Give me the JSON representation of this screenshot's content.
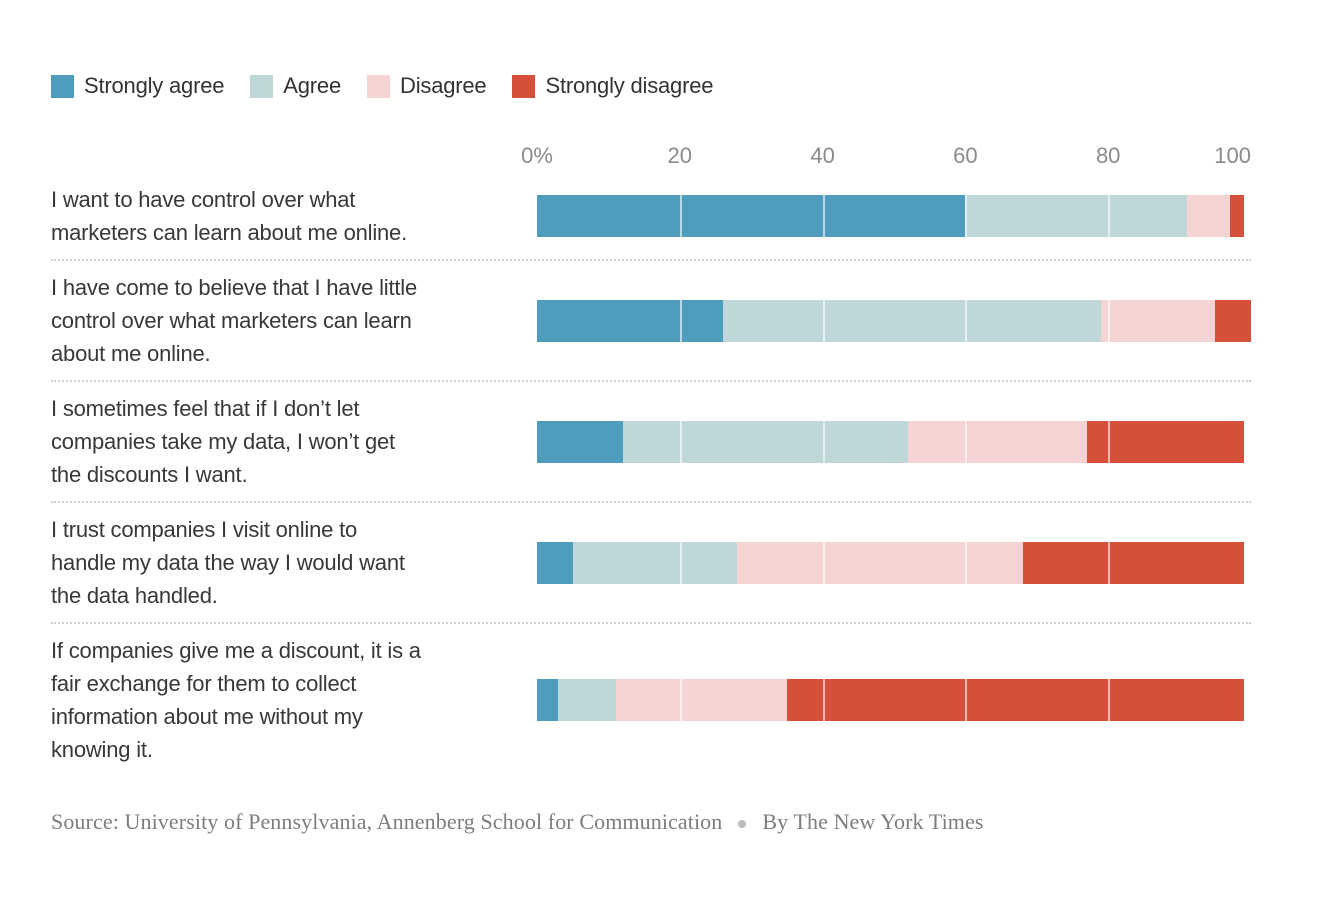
{
  "colors": {
    "strongly_agree": "#4e9dbd",
    "agree": "#c0d7da",
    "disagree": "#f6d4d3",
    "strongly_disagree": "#d5503a",
    "axis_label": "#8b8b8b",
    "statement_text": "#383838",
    "source_text": "#7d7d7d",
    "row_separator": "#cfcfcf"
  },
  "legend": {
    "items": [
      {
        "label": "Strongly agree",
        "color_key": "strongly_agree"
      },
      {
        "label": "Agree",
        "color_key": "agree"
      },
      {
        "label": "Disagree",
        "color_key": "disagree"
      },
      {
        "label": "Strongly disagree",
        "color_key": "strongly_disagree"
      }
    ]
  },
  "axis": {
    "ticks": [
      {
        "label": "0%",
        "pos": 0
      },
      {
        "label": "20",
        "pos": 20
      },
      {
        "label": "40",
        "pos": 40
      },
      {
        "label": "60",
        "pos": 60
      },
      {
        "label": "80",
        "pos": 80
      },
      {
        "label": "100",
        "pos": 100
      }
    ],
    "gridline_positions": [
      20,
      40,
      60,
      80
    ]
  },
  "rows": [
    {
      "label_lines": [
        "I want to have control over what",
        "marketers can learn about me online."
      ],
      "values": [
        60,
        31,
        6,
        2
      ]
    },
    {
      "label_lines": [
        "I have come to believe that I have little",
        "control over what marketers can learn",
        "about me online."
      ],
      "values": [
        26,
        53,
        16,
        5
      ]
    },
    {
      "label_lines": [
        "I sometimes feel that if I don’t let",
        "companies take my data, I won’t get",
        "the discounts I want."
      ],
      "values": [
        12,
        40,
        25,
        22
      ]
    },
    {
      "label_lines": [
        "I trust companies I visit online to",
        "handle my data the way I would want",
        "the data handled."
      ],
      "values": [
        5,
        23,
        40,
        31
      ]
    },
    {
      "label_lines": [
        "If companies give me a discount, it is a",
        "fair exchange for them to collect",
        "information about me without my",
        "knowing it."
      ],
      "values": [
        3,
        8,
        24,
        64
      ]
    }
  ],
  "source": {
    "text": "Source: University of Pennsylvania, Annenberg School for Communication",
    "byline": "By The New York Times"
  },
  "chart_data": {
    "type": "bar",
    "subtype": "horizontal-stacked",
    "title": "",
    "xlabel": "",
    "ylabel": "",
    "xlim": [
      0,
      100
    ],
    "x_tick_labels": [
      "0%",
      "20",
      "40",
      "60",
      "80",
      "100"
    ],
    "grid": "white vertical gridlines at 20/40/60/80 over bars",
    "legend_position": "top-left",
    "categories": [
      "I want to have control over what marketers can learn about me online.",
      "I have come to believe that I have little control over what marketers can learn about me online.",
      "I sometimes feel that if I don’t let companies take my data, I won’t get the discounts I want.",
      "I trust companies I visit online to handle my data the way I would want the data handled.",
      "If companies give me a discount, it is a fair exchange for them to collect information about me without my knowing it."
    ],
    "series": [
      {
        "name": "Strongly agree",
        "color": "#4e9dbd",
        "values": [
          60,
          26,
          12,
          5,
          3
        ]
      },
      {
        "name": "Agree",
        "color": "#c0d7da",
        "values": [
          31,
          53,
          40,
          23,
          8
        ]
      },
      {
        "name": "Disagree",
        "color": "#f6d4d3",
        "values": [
          6,
          16,
          25,
          40,
          24
        ]
      },
      {
        "name": "Strongly disagree",
        "color": "#d5503a",
        "values": [
          2,
          5,
          22,
          31,
          64
        ]
      }
    ],
    "units": "percent of respondents"
  }
}
